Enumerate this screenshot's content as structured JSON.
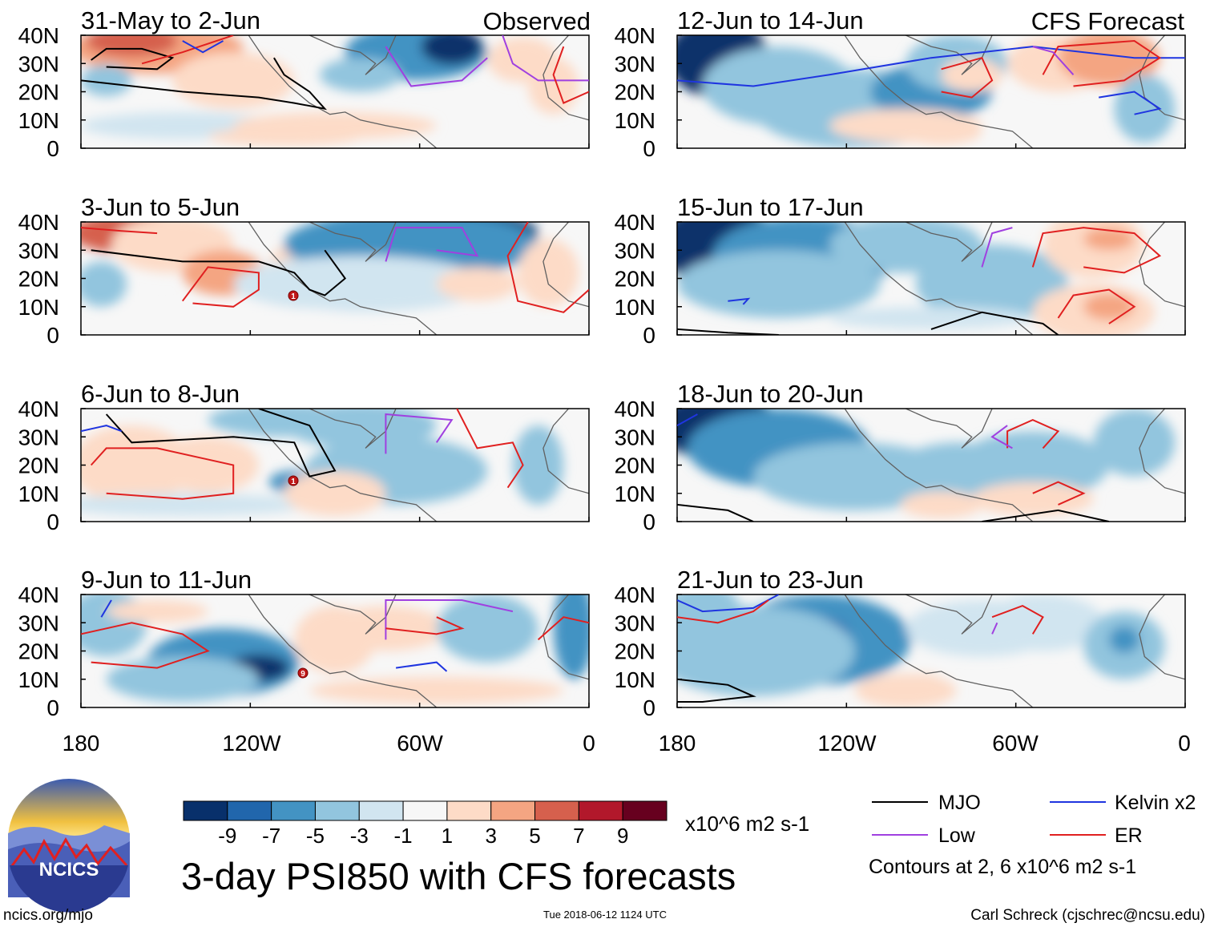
{
  "figure": {
    "title": "3-day PSI850 with CFS forecasts",
    "timestamp": "Tue 2018-06-12 1124 UTC",
    "website": "ncics.org/mjo",
    "author": "Carl Schreck (cjschrec@ncsu.edu)",
    "logo_text": "NCICS"
  },
  "columns": {
    "left_label": "Observed",
    "right_label": "CFS Forecast"
  },
  "panels": [
    {
      "period": "31-May to 2-Jun",
      "column": "observed"
    },
    {
      "period": "3-Jun to 5-Jun",
      "column": "observed"
    },
    {
      "period": "6-Jun to 8-Jun",
      "column": "observed"
    },
    {
      "period": "9-Jun to 11-Jun",
      "column": "observed"
    },
    {
      "period": "12-Jun to 14-Jun",
      "column": "forecast"
    },
    {
      "period": "15-Jun to 17-Jun",
      "column": "forecast"
    },
    {
      "period": "18-Jun to 20-Jun",
      "column": "forecast"
    },
    {
      "period": "21-Jun to 23-Jun",
      "column": "forecast"
    }
  ],
  "axes": {
    "lat_ticks": [
      "40N",
      "30N",
      "20N",
      "10N",
      "0"
    ],
    "lon_ticks": [
      "180",
      "120W",
      "60W",
      "0"
    ]
  },
  "colorbar": {
    "units": "x10^6 m2 s-1",
    "labels": [
      "-9",
      "-7",
      "-5",
      "-3",
      "-1",
      "1",
      "3",
      "5",
      "7",
      "9"
    ],
    "colors": [
      "#08306b",
      "#2166ac",
      "#4393c3",
      "#92c5de",
      "#d1e5f0",
      "#f7f7f7",
      "#fddbc7",
      "#f4a582",
      "#d6604d",
      "#b2182b",
      "#67001f"
    ]
  },
  "legend": {
    "items": [
      {
        "label": "MJO",
        "color": "#000000"
      },
      {
        "label": "Kelvin x2",
        "color": "#1f35e0"
      },
      {
        "label": "Low",
        "color": "#a040e0"
      },
      {
        "label": "ER",
        "color": "#e02020"
      }
    ],
    "note": "Contours at 2, 6 x10^6 m2 s-1"
  },
  "storm_markers": [
    {
      "panel": 1,
      "label": "1"
    },
    {
      "panel": 2,
      "label": "1"
    },
    {
      "panel": 3,
      "label": "9"
    }
  ]
}
